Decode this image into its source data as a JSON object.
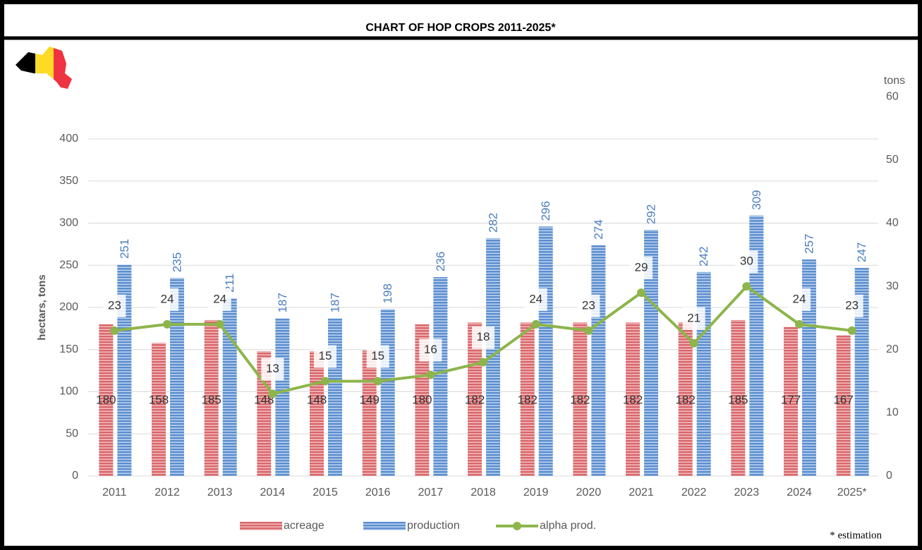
{
  "chart_data": {
    "type": "bar_line",
    "title": "CHART OF HOP CROPS 2011-2025*",
    "ylabel": "hectars, tons",
    "y2label": "tons",
    "note": "* estimation",
    "categories": [
      "2011",
      "2012",
      "2013",
      "2014",
      "2015",
      "2016",
      "2017",
      "2018",
      "2019",
      "2020",
      "2021",
      "2022",
      "2023",
      "2024",
      "2025*"
    ],
    "series": [
      {
        "name": "acreage",
        "type": "bar",
        "color": "#d9676b",
        "values": [
          180,
          158,
          185,
          148,
          148,
          149,
          180,
          182,
          182,
          182,
          182,
          182,
          185,
          177,
          167
        ]
      },
      {
        "name": "production",
        "type": "bar",
        "color": "#5b8ed0",
        "values": [
          251,
          235,
          211,
          187,
          187,
          198,
          236,
          282,
          296,
          274,
          292,
          242,
          309,
          257,
          247
        ]
      },
      {
        "name": "alpha prod.",
        "type": "line",
        "axis": "y2",
        "color": "#8db54b",
        "values": [
          23,
          24,
          24,
          13,
          15,
          15,
          16,
          18,
          24,
          23,
          29,
          21,
          30,
          24,
          23
        ]
      }
    ],
    "ylim": [
      0,
      450
    ],
    "yticks": [
      0,
      50,
      100,
      150,
      200,
      250,
      300,
      350,
      400
    ],
    "y2lim": [
      0,
      60
    ],
    "y2ticks": [
      0,
      10,
      20,
      30,
      40,
      50,
      60
    ],
    "grid": true,
    "legend": "bottom"
  }
}
